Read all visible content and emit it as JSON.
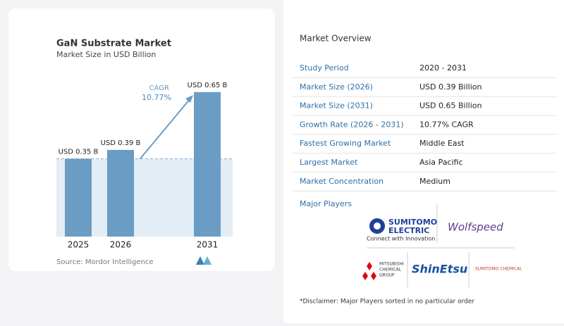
{
  "chart_data": {
    "type": "bar",
    "title": "GaN Substrate Market",
    "subtitle": "Market Size in USD Billion",
    "categories": [
      "2025",
      "2026",
      "2031"
    ],
    "values": [
      0.35,
      0.39,
      0.65
    ],
    "value_labels": [
      "USD 0.35 B",
      "USD 0.39 B",
      "USD 0.65 B"
    ],
    "color": "#6a9cc4",
    "ylim": [
      0,
      0.7
    ],
    "annotations": [
      "CAGR",
      "10.77%"
    ],
    "source": "Source: Mordor Intelligence"
  },
  "overview": {
    "title": "Market Overview",
    "rows": [
      [
        "Study Period",
        "2020 - 2031"
      ],
      [
        "Market Size (2026)",
        "USD 0.39 Billion"
      ],
      [
        "Market Size (2031)",
        "USD 0.65 Billion"
      ],
      [
        "Growth Rate (2026 - 2031)",
        "10.77% CAGR"
      ],
      [
        "Fastest Growing Market",
        "Middle East"
      ],
      [
        "Largest Market",
        "Asia Pacific"
      ],
      [
        "Market Concentration",
        "Medium"
      ]
    ]
  },
  "players": {
    "title": "Major Players",
    "sumitomo_electric": [
      "SUMITOMO",
      "ELECTRIC",
      "Connect with Innovation"
    ],
    "wolfspeed": "Wolfspeed",
    "mitsubishi": [
      "MITSUBISHI",
      "CHEMICAL",
      "GROUP"
    ],
    "shinetsu": "ShinEtsu",
    "sumitomo_chemical": "SUMITOMO CHEMICAL"
  },
  "disclaimer": "*Disclaimer: Major Players sorted in no particular order"
}
